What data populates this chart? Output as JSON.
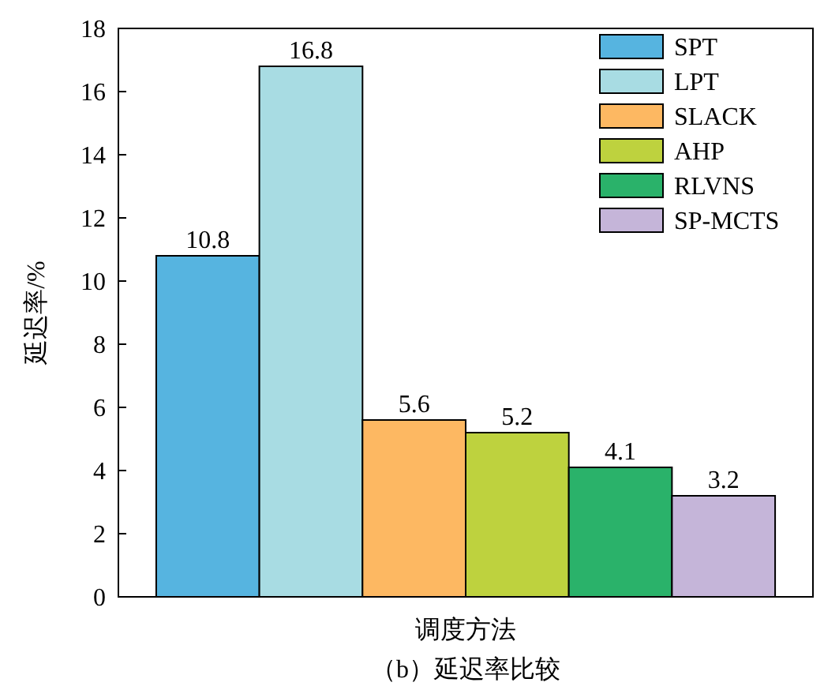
{
  "chart_data": {
    "type": "bar",
    "title": "（b）延迟率比较",
    "xlabel": "调度方法",
    "ylabel": "延迟率/%",
    "categories": [
      null
    ],
    "series": [
      {
        "name": "SPT",
        "color": "#56b4e0",
        "values": [
          10.8
        ]
      },
      {
        "name": "LPT",
        "color": "#a8dce3",
        "values": [
          16.8
        ]
      },
      {
        "name": "SLACK",
        "color": "#fdb862",
        "values": [
          5.6
        ]
      },
      {
        "name": "AHP",
        "color": "#bed23e",
        "values": [
          5.2
        ]
      },
      {
        "name": "RLVNS",
        "color": "#2ab26a",
        "values": [
          4.1
        ]
      },
      {
        "name": "SP-MCTS",
        "color": "#c5b5d9",
        "values": [
          3.2
        ]
      }
    ],
    "ylim": [
      0,
      18
    ],
    "yticks": [
      0,
      2,
      4,
      6,
      8,
      10,
      12,
      14,
      16,
      18
    ],
    "data_labels": true,
    "legend": "top right",
    "grid": false
  }
}
